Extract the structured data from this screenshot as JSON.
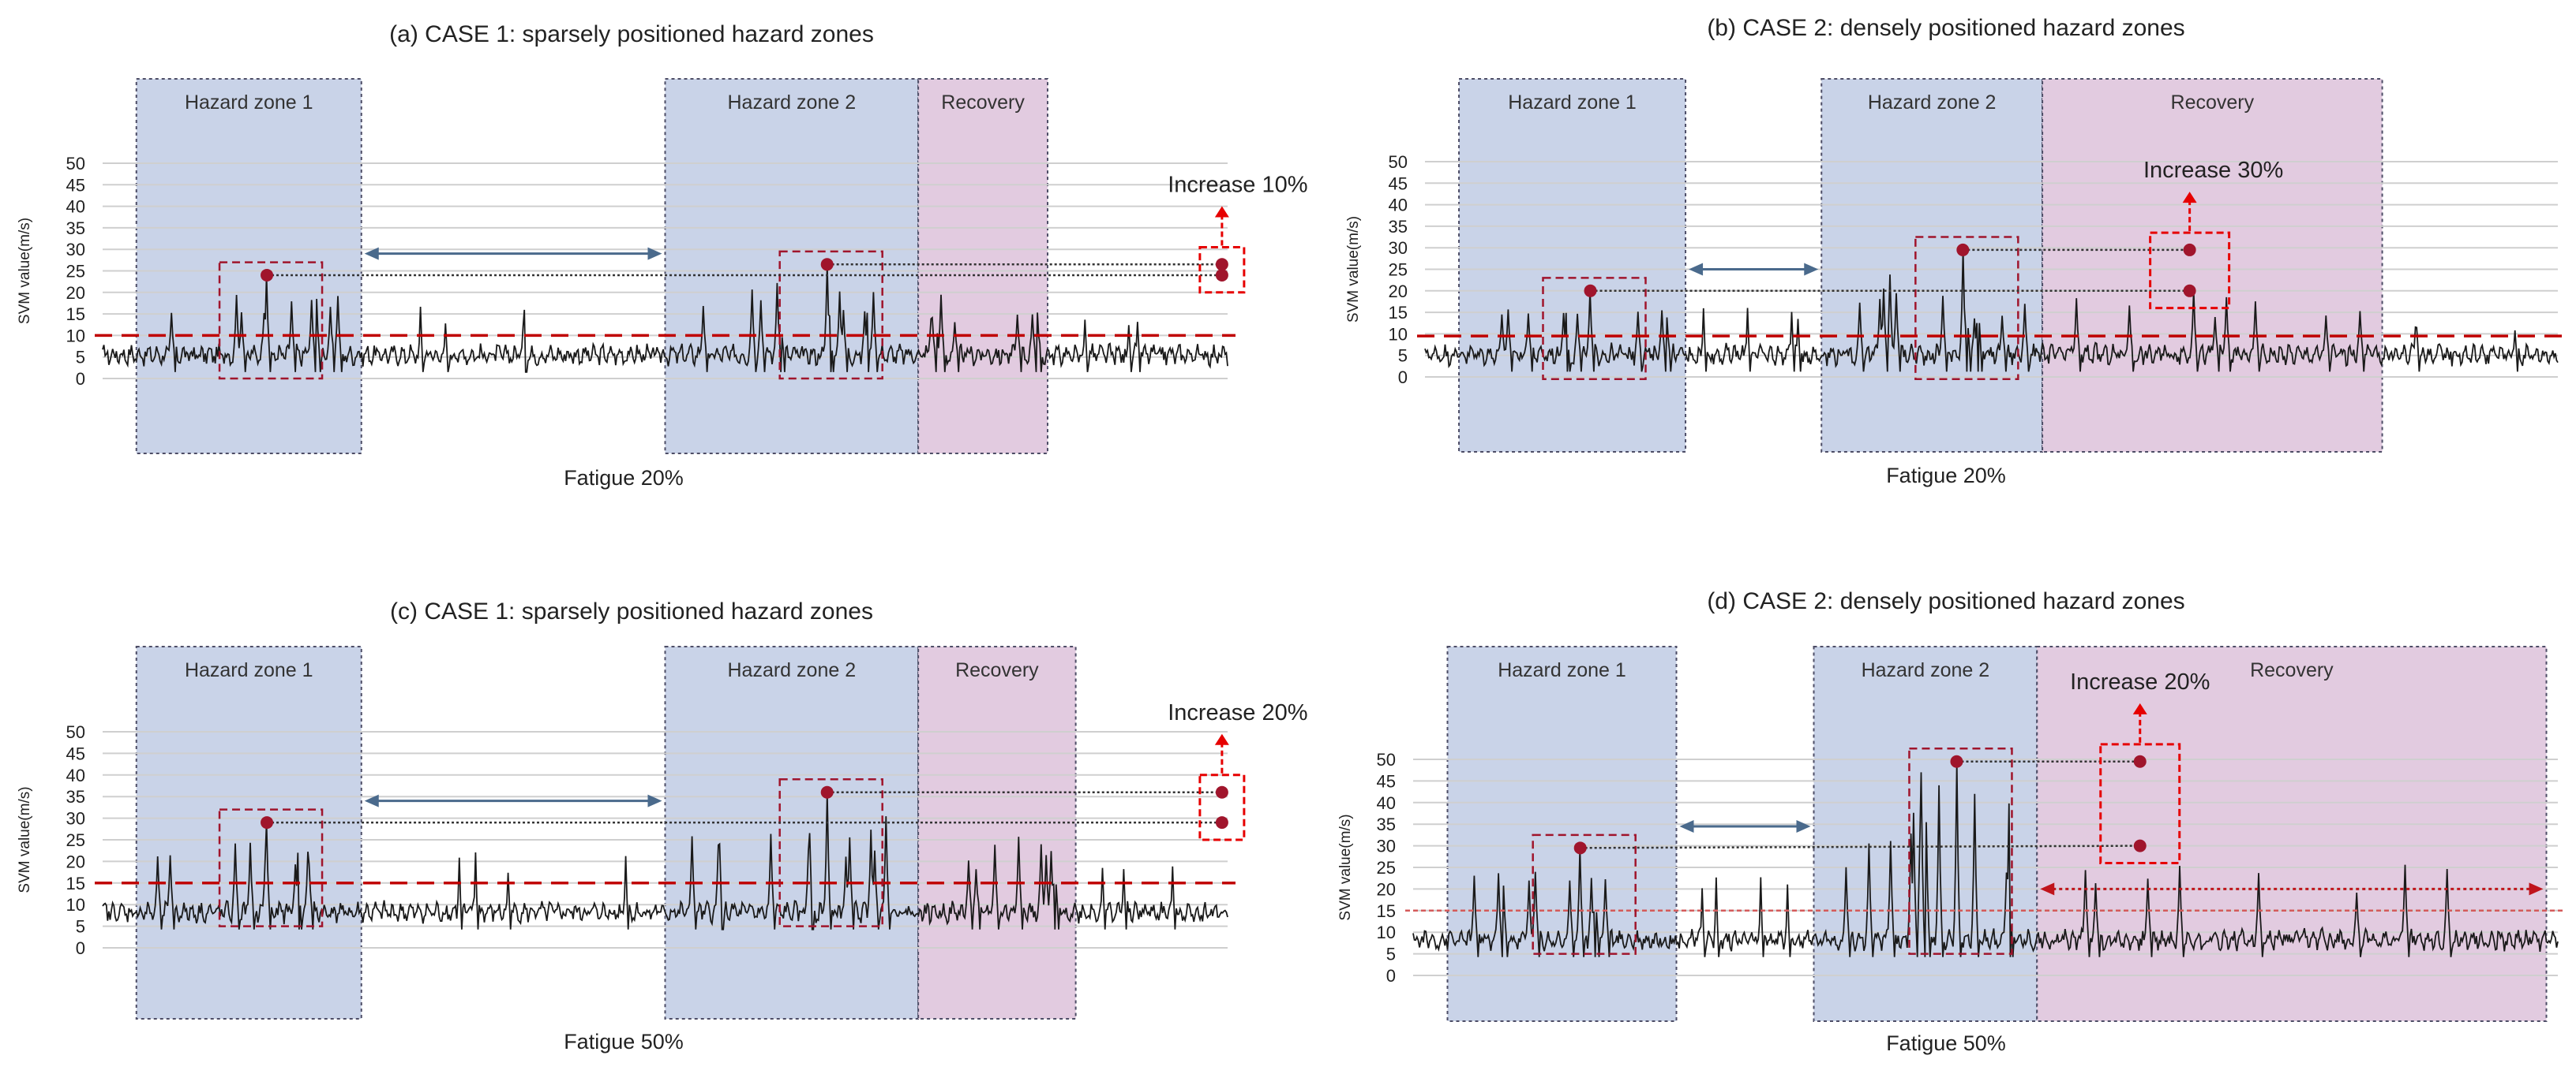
{
  "colors": {
    "hazard_fill": "#c9d3e8",
    "recovery_fill": "#e2cbe0",
    "zone_border": "#4d4d66",
    "grid": "#cfcfcf",
    "signal": "#1a1a1a",
    "dark_red": "#a0152c",
    "red": "#e60000",
    "arrow_blue": "#4a6a8c",
    "dotted": "#333333"
  },
  "chart_data": [
    {
      "id": "a",
      "type": "line",
      "title": "(a) CASE 1: sparsely positioned hazard zones",
      "ylabel": "SVM value(m/s)",
      "yticks": [
        "50",
        "45",
        "40",
        "35",
        "30",
        "25",
        "20",
        "15",
        "10",
        "5",
        "0"
      ],
      "ylim": [
        0,
        50
      ],
      "threshold": 10,
      "zones": [
        {
          "label": "Hazard zone 1",
          "kind": "hazard",
          "start": 0.03,
          "end": 0.23
        },
        {
          "label": "Hazard zone 2",
          "kind": "hazard",
          "start": 0.5,
          "end": 0.725
        },
        {
          "label": "Recovery",
          "kind": "recovery",
          "start": 0.725,
          "end": 0.84
        }
      ],
      "peaks": {
        "zone1": 24,
        "zone2": 26.5,
        "recovery_low": 24,
        "recovery_high": 26.5
      },
      "annotation": "Increase 10%",
      "fatigue": "Fatigue 20%"
    },
    {
      "id": "b",
      "type": "line",
      "title": "(b) CASE 2: densely positioned hazard zones",
      "ylabel": "SVM value(m/s)",
      "yticks": [
        "50",
        "45",
        "40",
        "35",
        "30",
        "25",
        "20",
        "15",
        "10",
        "5",
        "0"
      ],
      "ylim": [
        0,
        50
      ],
      "threshold": 9.5,
      "zones": [
        {
          "label": "Hazard zone 1",
          "kind": "hazard",
          "start": 0.03,
          "end": 0.23
        },
        {
          "label": "Hazard zone 2",
          "kind": "hazard",
          "start": 0.35,
          "end": 0.545
        },
        {
          "label": "Recovery",
          "kind": "recovery",
          "start": 0.545,
          "end": 0.845
        }
      ],
      "peaks": {
        "zone1": 20,
        "zone2": 29.5,
        "recovery_low": 20,
        "recovery_high": 29.5
      },
      "annotation": "Increase 30%",
      "fatigue": "Fatigue 20%"
    },
    {
      "id": "c",
      "type": "line",
      "title": "(c) CASE 1: sparsely positioned hazard zones",
      "ylabel": "SVM value(m/s)",
      "yticks": [
        "50",
        "45",
        "40",
        "35",
        "30",
        "25",
        "20",
        "15",
        "10",
        "5",
        "0"
      ],
      "ylim": [
        0,
        50
      ],
      "threshold": 15,
      "zones": [
        {
          "label": "Hazard zone 1",
          "kind": "hazard",
          "start": 0.03,
          "end": 0.23
        },
        {
          "label": "Hazard zone 2",
          "kind": "hazard",
          "start": 0.5,
          "end": 0.725
        },
        {
          "label": "Recovery",
          "kind": "recovery",
          "start": 0.725,
          "end": 0.865
        }
      ],
      "peaks": {
        "zone1": 29,
        "zone2": 36,
        "recovery_low": 29,
        "recovery_high": 36
      },
      "annotation": "Increase 20%",
      "fatigue": "Fatigue 50%"
    },
    {
      "id": "d",
      "type": "line",
      "title": "(d) CASE 2: densely positioned hazard zones",
      "ylabel": "SVM value(m/s)",
      "yticks": [
        "50",
        "45",
        "40",
        "35",
        "30",
        "25",
        "20",
        "15",
        "10",
        "5",
        "0"
      ],
      "ylim": [
        0,
        50
      ],
      "threshold": 15,
      "zones": [
        {
          "label": "Hazard zone 1",
          "kind": "hazard",
          "start": 0.03,
          "end": 0.23
        },
        {
          "label": "Hazard zone 2",
          "kind": "hazard",
          "start": 0.35,
          "end": 0.545
        },
        {
          "label": "Recovery",
          "kind": "recovery",
          "start": 0.545,
          "end": 0.99
        }
      ],
      "peaks": {
        "zone1": 29.5,
        "zone2": 49.5,
        "recovery_low": 30,
        "recovery_high": 49.5
      },
      "annotation": "Increase 20%",
      "fatigue": "Fatigue 50%"
    }
  ]
}
